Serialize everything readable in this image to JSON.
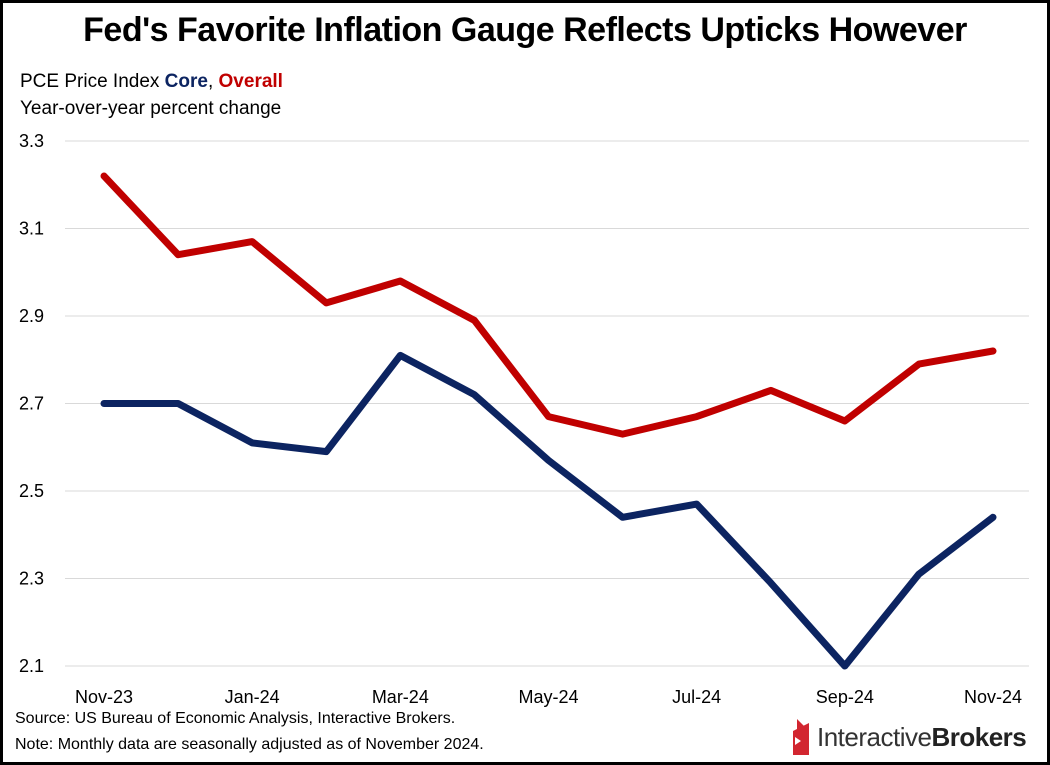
{
  "title": "Fed's Favorite Inflation Gauge Reflects Upticks However",
  "subtitle": {
    "prefix": "PCE Price Index ",
    "core_label": "Core",
    "separator": ", ",
    "overall_label": "Overall",
    "line2": "Year-over-year percent change"
  },
  "footnotes": {
    "source": "Source: US Bureau of Economic Analysis, Interactive Brokers.",
    "note": "Note: Monthly data are seasonally adjusted as of November 2024."
  },
  "logo": {
    "text_regular": "Interactive",
    "text_bold": "Brokers",
    "icon": "ib-logo-icon"
  },
  "colors": {
    "core": "#0c2461",
    "overall": "#c00000",
    "grid": "#d9d9d9"
  },
  "chart_data": {
    "type": "line",
    "x": [
      "Nov-23",
      "Dec-23",
      "Jan-24",
      "Feb-24",
      "Mar-24",
      "Apr-24",
      "May-24",
      "Jun-24",
      "Jul-24",
      "Aug-24",
      "Sep-24",
      "Oct-24",
      "Nov-24"
    ],
    "x_tick_labels": [
      "Nov-23",
      "Jan-24",
      "Mar-24",
      "May-24",
      "Jul-24",
      "Sep-24",
      "Nov-24"
    ],
    "y_ticks": [
      "3.3",
      "3.1",
      "2.9",
      "2.7",
      "2.5",
      "2.3",
      "2.1"
    ],
    "ylim": [
      2.1,
      3.3
    ],
    "grid": true,
    "series": [
      {
        "name": "Overall",
        "color": "#c00000",
        "values": [
          3.22,
          3.04,
          3.07,
          2.93,
          2.98,
          2.89,
          2.67,
          2.63,
          2.67,
          2.73,
          2.66,
          2.79,
          2.82
        ]
      },
      {
        "name": "Core",
        "color": "#0c2461",
        "values": [
          2.7,
          2.7,
          2.61,
          2.59,
          2.81,
          2.72,
          2.57,
          2.44,
          2.47,
          2.29,
          2.1,
          2.31,
          2.44
        ]
      }
    ]
  }
}
